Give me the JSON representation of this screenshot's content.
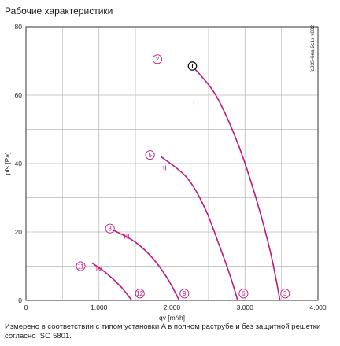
{
  "title": "Рабочие характеристики",
  "note": "Измерено в соответствии с типом установки A в полном раструбе и без защитной решетки согласно ISO 5801.",
  "colors": {
    "curve": "#c0187a",
    "grid": "#b9b9b9",
    "axis": "#333333"
  },
  "chart_data": {
    "type": "line",
    "title": "",
    "xlabel": "qv [m³/h]",
    "ylabel": "pfs [Pa]",
    "side_label": "fc035-6ea.2c1s v802",
    "xlim": [
      0,
      4000
    ],
    "ylim": [
      0,
      80
    ],
    "x_ticks": [
      0,
      1000,
      2000,
      3000,
      4000
    ],
    "x_tick_labels": [
      "0",
      "1.000",
      "2.000",
      "3.000",
      "4.000"
    ],
    "y_ticks": [
      0,
      20,
      40,
      60,
      80
    ],
    "y_tick_labels": [
      "0",
      "20",
      "40",
      "60",
      "80"
    ],
    "grid": true,
    "series": [
      {
        "name": "I",
        "label_at": [
          2300,
          57
        ],
        "points": [
          [
            2300,
            68
          ],
          [
            2600,
            60
          ],
          [
            2900,
            46
          ],
          [
            3150,
            30
          ],
          [
            3350,
            14
          ],
          [
            3480,
            0
          ]
        ]
      },
      {
        "name": "II",
        "label_at": [
          1900,
          38
        ],
        "points": [
          [
            1850,
            42
          ],
          [
            2200,
            36
          ],
          [
            2450,
            27
          ],
          [
            2650,
            16
          ],
          [
            2800,
            7
          ],
          [
            2900,
            0
          ]
        ]
      },
      {
        "name": "III",
        "label_at": [
          1380,
          18
        ],
        "points": [
          [
            1200,
            20.5
          ],
          [
            1500,
            17
          ],
          [
            1750,
            12
          ],
          [
            1950,
            6
          ],
          [
            2100,
            0
          ]
        ]
      },
      {
        "name": "IV",
        "label_at": [
          1000,
          8.5
        ],
        "points": [
          [
            900,
            11
          ],
          [
            1100,
            8
          ],
          [
            1300,
            4
          ],
          [
            1450,
            0
          ]
        ]
      }
    ],
    "markers": [
      {
        "label": "2",
        "x": 1800,
        "y": 70.5
      },
      {
        "label": "5",
        "x": 1700,
        "y": 42.5
      },
      {
        "label": "8",
        "x": 1150,
        "y": 21
      },
      {
        "label": "11",
        "x": 750,
        "y": 10
      },
      {
        "label": "3",
        "x": 3550,
        "y": 2
      },
      {
        "label": "6",
        "x": 2980,
        "y": 2
      },
      {
        "label": "9",
        "x": 2170,
        "y": 2
      },
      {
        "label": "12",
        "x": 1560,
        "y": 2
      }
    ],
    "operating_point": {
      "label": "Ⓘ",
      "x": 2280,
      "y": 68.5
    }
  }
}
